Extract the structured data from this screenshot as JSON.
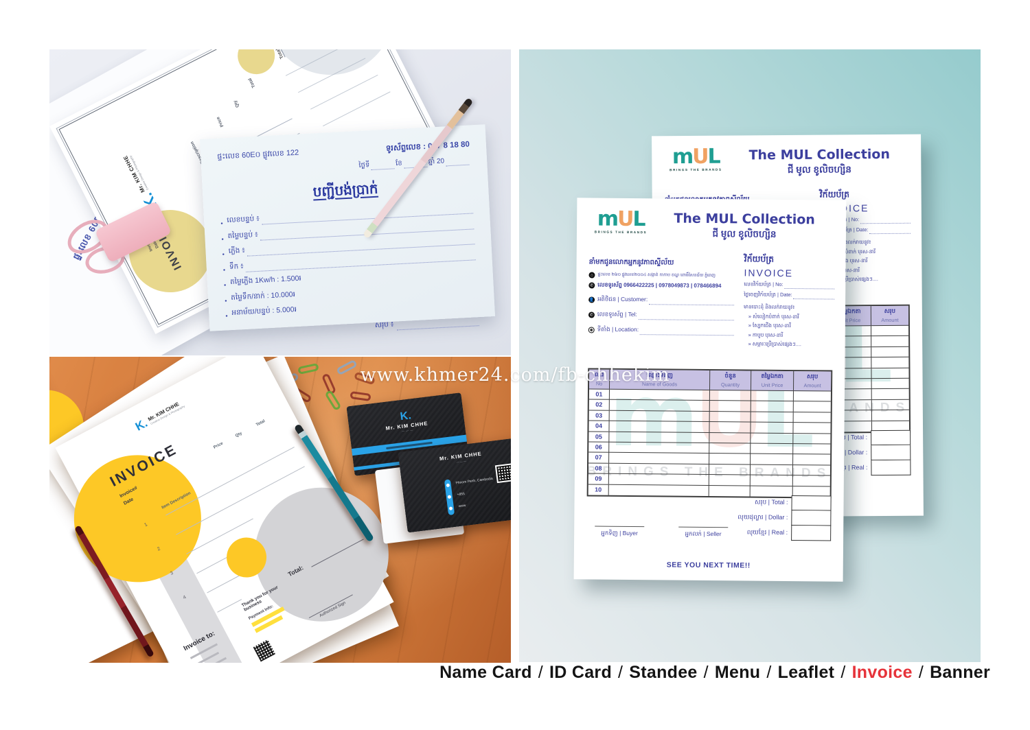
{
  "watermark": "www.khmer24.com/fb-chhekim",
  "footer": {
    "separator": "/",
    "items": [
      "Name Card",
      "ID Card",
      "Standee",
      "Menu",
      "Leaflet",
      "Invoice",
      "Banner"
    ]
  },
  "tl": {
    "back_sheet_text": "ផ្ទះលេខ 60E០ ផ្លូវលេខ 122",
    "mock": {
      "logo_k": "K.",
      "brand": "Mr. KIM CHHE",
      "brand_sub": "Creative Design & Photography",
      "title": "INVOICE",
      "meta1": "Invoice#",
      "meta2": "Date",
      "col_item": "Item Description",
      "col_price": "Price",
      "col_qty": "Qty",
      "col_total": "Total",
      "total_label": "Total:"
    },
    "card": {
      "address": "ផ្ទះលេខ 60E០ ផ្លូវលេខ 122",
      "phone": "ទូរស័ព្ទលេខ : 017 8 18 80",
      "date_parts": [
        "ថ្ងៃទី",
        "ខែ",
        "ឆ្នាំ 20"
      ],
      "title": "បញ្ជីបង់ប្រាក់",
      "bullet": "•",
      "items": [
        "លេខបន្ទប់ ៖",
        "តម្លៃបន្ទប់ ៖",
        "ភ្លើង ៖",
        "ទឹក ៖",
        "តម្លៃភ្លើង 1Kw/h : 1.500៛",
        "តម្លៃទឹក/នាក់ : 10.000៛",
        "អនាម័យ/បន្ទប់ : 5.000៛"
      ],
      "total_label": "សរុប ៖"
    }
  },
  "bl": {
    "sheet": {
      "logo_k": "K.",
      "brand": "Mr. KIM CHHE",
      "brand_sub": "Creative Design & Photography",
      "title": "INVOICE",
      "meta1": "Invoice#",
      "meta2": "Date",
      "col_item": "Item Description",
      "col_price": "Price",
      "col_qty": "Qty",
      "col_total": "Total",
      "rows": [
        "1",
        "2",
        "3",
        "4"
      ],
      "invoice_to": "Invoice to:",
      "thanks": "Thank you for your business",
      "payment": "Payment Info:",
      "total_label": "Total:",
      "sign": "Authorized Sign"
    },
    "card1": {
      "logo_k": "K.",
      "name": "Mr. KIM CHHE"
    },
    "card2": {
      "name": "Mr. KIM CHHE",
      "location": "Phnom Penh, Cambodia",
      "phone": "+855",
      "web": "www"
    },
    "card3": {
      "logo_k": "K."
    }
  },
  "mul": {
    "logo": {
      "m": "m",
      "u": "U",
      "l": "L",
      "tagline": "BRINGS THE BRANDS"
    },
    "title_en": "The MUL Collection",
    "title_km": "ជី មូល ខូលិចហ្សិន",
    "invoice_km": "វិក័យប័ត្រ",
    "invoice_en": "INVOICE",
    "no_line": "លេខវិក័យប័ត្រ | No:",
    "date_line": "ថ្ងៃចេញវិក័យប័ត្រ | Date:",
    "tagline_km": "នាំមកជូនលោកអ្នកនូវភាពស្ទីល័យ",
    "address": "ផ្ទះលេខ ២៦០ ផ្លូវលេខ២០០៤ សង្កាត់ កាកាប ខណ្ឌ ពោធិ៍សែនជ័យ ភ្នំពេញ",
    "phones": "លេខទូរស័ព្ទ 0966422225 | 0978049873 | 078466894",
    "customer": "អតិថិជន | Customer:",
    "tel": "លេខទូរស័ព្ទ | Tel:",
    "location": "ទីតាំង | Location:",
    "sell_heading": "មានបោះដុំ និងលក់រាយនូវ៖",
    "sell_items": [
      "» សំលៀកបំពាក់ បុរស-នារី",
      "» ស្បែកជើង បុរស-នារី",
      "» កាបូប បុរស-នារី",
      "» សម្ភារៈប្រើប្រាស់ផ្សេងៗ...."
    ],
    "table": {
      "h_no_km": "ល.រ",
      "h_no_en": "No",
      "h_goods_km": "ឈ្មោះទំនិញ",
      "h_goods_en": "Name of Goods",
      "h_qty_km": "ចំនួន",
      "h_qty_en": "Quantity",
      "h_unit_km": "តម្លៃឯកតា",
      "h_unit_en": "Unit Price",
      "h_amt_km": "សរុប",
      "h_amt_en": "Amount",
      "rows": [
        "01",
        "02",
        "03",
        "04",
        "05",
        "06",
        "07",
        "08",
        "09",
        "10"
      ]
    },
    "total_line": "សរុប | Total :",
    "dollar_line": "លុយដុល្លារ | Dollar :",
    "real_line": "លុយខ្មែរ | Real :",
    "buyer": "អ្នកទិញ | Buyer",
    "seller": "អ្នកលក់ | Seller",
    "closing": "SEE YOU NEXT TIME!!"
  }
}
